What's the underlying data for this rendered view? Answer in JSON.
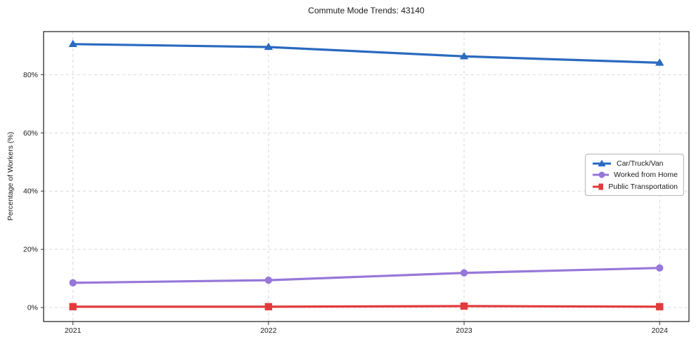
{
  "figure": {
    "title": "Commute Mode Trends: 43140"
  },
  "chart_data": {
    "type": "line",
    "title": "Commute Mode Trends: 43140",
    "xlabel": "",
    "ylabel": "Percentage of Workers (%)",
    "categories": [
      2021,
      2022,
      2023,
      2024
    ],
    "x_tick_labels": [
      "2021",
      "2022",
      "2023",
      "2024"
    ],
    "y_ticks": [
      0,
      20,
      40,
      60,
      80
    ],
    "y_tick_labels": [
      "0%",
      "20%",
      "40%",
      "60%",
      "80%"
    ],
    "xlim": [
      2020.85,
      2024.15
    ],
    "ylim": [
      -4.8,
      94.8
    ],
    "grid": true,
    "grid_style": "dashed",
    "legend_position": "center-right",
    "series": [
      {
        "name": "Car/Truck/Van",
        "marker": "triangle",
        "color": "#2a6abf",
        "values": [
          90.5,
          89.5,
          86.3,
          84.1
        ]
      },
      {
        "name": "Worked from Home",
        "marker": "circle",
        "color": "#9777d9",
        "values": [
          8.5,
          9.4,
          11.9,
          13.6
        ]
      },
      {
        "name": "Public Transportation",
        "marker": "square",
        "color": "#e23b3c",
        "values": [
          0.3,
          0.3,
          0.5,
          0.3
        ]
      }
    ]
  },
  "colors": {
    "background": "#ffffff",
    "grid": "#d7d7d7",
    "axis_frame": "#1a1a1a",
    "tick": "#333333",
    "text": "#1a1a1a",
    "legend_border": "#b6b6b6"
  }
}
